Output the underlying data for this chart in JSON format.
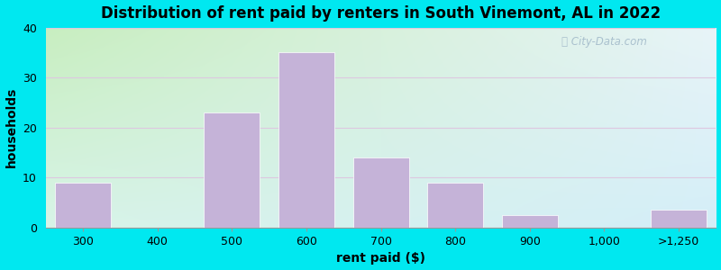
{
  "title": "Distribution of rent paid by renters in South Vinemont, AL in 2022",
  "xlabel": "rent paid ($)",
  "ylabel": "households",
  "bar_color": "#c5b3d8",
  "bar_edgecolor": "#ffffff",
  "categories": [
    "300",
    "400",
    "500",
    "600",
    "700",
    "800",
    "900",
    "1,000",
    ">1,250"
  ],
  "values": [
    9,
    0,
    23,
    35,
    14,
    9,
    2.5,
    0,
    3.5
  ],
  "ylim": [
    0,
    40
  ],
  "yticks": [
    0,
    10,
    20,
    30,
    40
  ],
  "bar_width": 0.75,
  "fig_facecolor": "#00e8f0",
  "grad_color_topleft": "#c8eec0",
  "grad_color_topright": "#e8f4f8",
  "grad_color_bottomleft": "#d8f4e8",
  "grad_color_bottomright": "#d4eef8",
  "grid_color": "#ddc8e0",
  "watermark": "City-Data.com",
  "title_fontsize": 12,
  "axis_label_fontsize": 10,
  "tick_fontsize": 9
}
